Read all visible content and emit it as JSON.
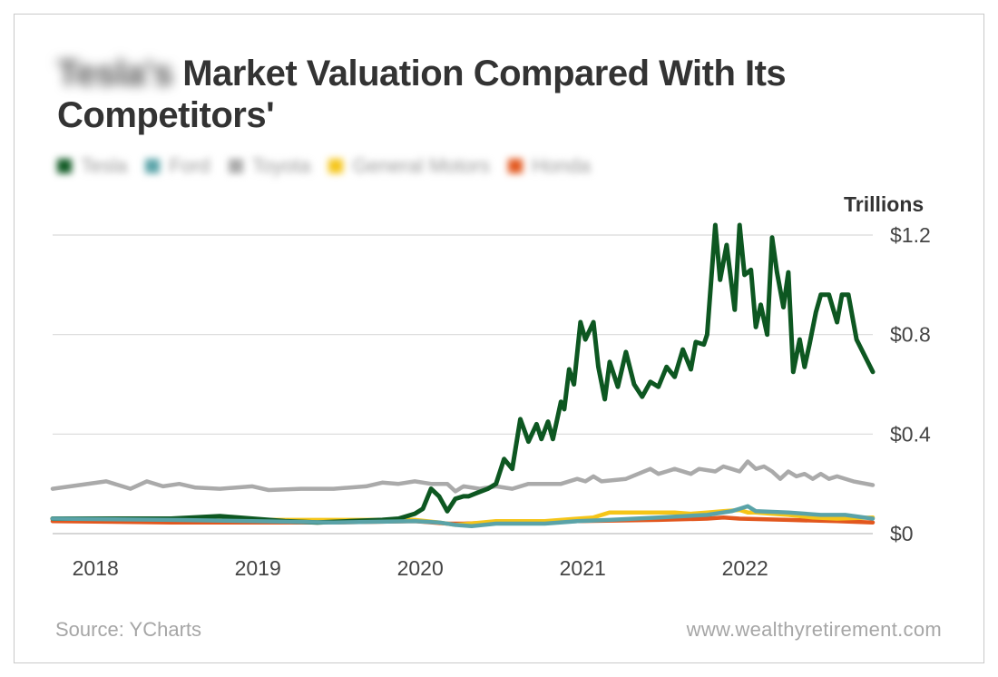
{
  "header": {
    "title_blurred": "Tesla's",
    "title_main": "Market Valuation Compared With Its Competitors'"
  },
  "footer": {
    "source": "Source: YCharts",
    "site": "www.wealthyretirement.com"
  },
  "chart_data": {
    "type": "line",
    "title": "Tesla's Market Valuation Compared With Its Competitors'",
    "ylabel": "Trillions",
    "xlabel": "",
    "ylim": [
      0,
      1.2
    ],
    "xlim": [
      2017.77,
      2022.82
    ],
    "y_ticks": [
      {
        "value": 0,
        "label": "$0"
      },
      {
        "value": 0.4,
        "label": "$0.4"
      },
      {
        "value": 0.8,
        "label": "$0.8"
      },
      {
        "value": 1.2,
        "label": "$1.2"
      }
    ],
    "x_ticks": [
      {
        "value": 2018,
        "label": "2018"
      },
      {
        "value": 2019,
        "label": "2019"
      },
      {
        "value": 2020,
        "label": "2020"
      },
      {
        "value": 2021,
        "label": "2021"
      },
      {
        "value": 2022,
        "label": "2022"
      }
    ],
    "grid": true,
    "legend_position": "top-left",
    "series": [
      {
        "name": "Toyota",
        "color": "#aaaaaa",
        "x": [
          2017.77,
          2018.1,
          2018.25,
          2018.35,
          2018.45,
          2018.55,
          2018.65,
          2018.8,
          2019.0,
          2019.1,
          2019.3,
          2019.5,
          2019.7,
          2019.8,
          2019.9,
          2020.0,
          2020.1,
          2020.2,
          2020.25,
          2020.3,
          2020.4,
          2020.5,
          2020.6,
          2020.7,
          2020.9,
          2021.0,
          2021.05,
          2021.1,
          2021.15,
          2021.3,
          2021.45,
          2021.5,
          2021.55,
          2021.6,
          2021.7,
          2021.75,
          2021.85,
          2021.9,
          2021.95,
          2022.0,
          2022.05,
          2022.1,
          2022.15,
          2022.2,
          2022.25,
          2022.3,
          2022.35,
          2022.4,
          2022.45,
          2022.5,
          2022.55,
          2022.6,
          2022.7,
          2022.82
        ],
        "values": [
          0.18,
          0.21,
          0.18,
          0.21,
          0.19,
          0.2,
          0.185,
          0.18,
          0.19,
          0.175,
          0.18,
          0.18,
          0.19,
          0.205,
          0.2,
          0.21,
          0.2,
          0.2,
          0.17,
          0.19,
          0.18,
          0.19,
          0.18,
          0.2,
          0.2,
          0.22,
          0.21,
          0.23,
          0.21,
          0.22,
          0.26,
          0.24,
          0.25,
          0.26,
          0.24,
          0.26,
          0.25,
          0.27,
          0.26,
          0.25,
          0.29,
          0.26,
          0.27,
          0.25,
          0.22,
          0.25,
          0.23,
          0.24,
          0.22,
          0.24,
          0.22,
          0.23,
          0.21,
          0.195
        ]
      },
      {
        "name": "Honda",
        "color": "#e2571e",
        "x": [
          2017.77,
          2018.5,
          2019.0,
          2019.5,
          2020.0,
          2020.2,
          2020.3,
          2020.5,
          2021.0,
          2021.5,
          2021.8,
          2021.9,
          2022.0,
          2022.3,
          2022.6,
          2022.82
        ],
        "values": [
          0.05,
          0.045,
          0.045,
          0.045,
          0.05,
          0.04,
          0.04,
          0.045,
          0.05,
          0.055,
          0.06,
          0.065,
          0.06,
          0.055,
          0.05,
          0.045
        ]
      },
      {
        "name": "General Motors",
        "color": "#f5c518",
        "x": [
          2017.77,
          2018.5,
          2019.0,
          2019.5,
          2020.0,
          2020.15,
          2020.25,
          2020.5,
          2020.8,
          2021.0,
          2021.1,
          2021.2,
          2021.5,
          2021.6,
          2021.7,
          2021.8,
          2021.9,
          2022.0,
          2022.05,
          2022.1,
          2022.2,
          2022.3,
          2022.45,
          2022.6,
          2022.82
        ],
        "values": [
          0.06,
          0.06,
          0.055,
          0.055,
          0.055,
          0.045,
          0.035,
          0.05,
          0.05,
          0.06,
          0.065,
          0.085,
          0.085,
          0.085,
          0.08,
          0.085,
          0.09,
          0.095,
          0.085,
          0.085,
          0.08,
          0.075,
          0.065,
          0.06,
          0.065
        ]
      },
      {
        "name": "Tesla",
        "color": "#0d5721",
        "x": [
          2017.77,
          2018.5,
          2018.8,
          2019.0,
          2019.2,
          2019.4,
          2019.6,
          2019.8,
          2019.9,
          2020.0,
          2020.05,
          2020.1,
          2020.15,
          2020.2,
          2020.25,
          2020.3,
          2020.33,
          2020.37,
          2020.45,
          2020.5,
          2020.55,
          2020.6,
          2020.65,
          2020.7,
          2020.75,
          2020.78,
          2020.82,
          2020.85,
          2020.9,
          2020.92,
          2020.95,
          2020.98,
          2021.02,
          2021.05,
          2021.1,
          2021.13,
          2021.17,
          2021.2,
          2021.25,
          2021.3,
          2021.35,
          2021.4,
          2021.45,
          2021.5,
          2021.55,
          2021.6,
          2021.65,
          2021.7,
          2021.73,
          2021.78,
          2021.8,
          2021.85,
          2021.88,
          2021.92,
          2021.97,
          2022.0,
          2022.03,
          2022.07,
          2022.1,
          2022.13,
          2022.17,
          2022.2,
          2022.23,
          2022.27,
          2022.3,
          2022.33,
          2022.37,
          2022.4,
          2022.43,
          2022.47,
          2022.5,
          2022.55,
          2022.6,
          2022.63,
          2022.67,
          2022.72,
          2022.82
        ],
        "values": [
          0.06,
          0.06,
          0.07,
          0.06,
          0.05,
          0.045,
          0.05,
          0.055,
          0.06,
          0.08,
          0.1,
          0.18,
          0.15,
          0.09,
          0.14,
          0.15,
          0.15,
          0.16,
          0.18,
          0.2,
          0.3,
          0.26,
          0.46,
          0.37,
          0.44,
          0.38,
          0.45,
          0.38,
          0.53,
          0.5,
          0.66,
          0.6,
          0.85,
          0.78,
          0.85,
          0.67,
          0.54,
          0.69,
          0.59,
          0.73,
          0.6,
          0.55,
          0.61,
          0.59,
          0.67,
          0.63,
          0.74,
          0.66,
          0.77,
          0.76,
          0.8,
          1.24,
          1.02,
          1.16,
          0.9,
          1.24,
          1.04,
          1.06,
          0.83,
          0.92,
          0.8,
          1.19,
          1.05,
          0.91,
          1.05,
          0.65,
          0.78,
          0.67,
          0.76,
          0.89,
          0.96,
          0.96,
          0.85,
          0.96,
          0.96,
          0.78,
          0.65
        ]
      },
      {
        "name": "Ford",
        "color": "#5aa3a8",
        "x": [
          2017.77,
          2018.5,
          2019.0,
          2019.5,
          2020.0,
          2020.15,
          2020.25,
          2020.35,
          2020.5,
          2020.8,
          2021.0,
          2021.2,
          2021.5,
          2021.8,
          2021.95,
          2022.0,
          2022.05,
          2022.1,
          2022.3,
          2022.5,
          2022.65,
          2022.82
        ],
        "values": [
          0.06,
          0.055,
          0.05,
          0.045,
          0.05,
          0.045,
          0.035,
          0.03,
          0.04,
          0.04,
          0.05,
          0.055,
          0.065,
          0.075,
          0.09,
          0.1,
          0.11,
          0.09,
          0.085,
          0.075,
          0.075,
          0.06
        ]
      }
    ]
  },
  "legend": [
    {
      "label": "Tesla",
      "color": "#0d5721"
    },
    {
      "label": "Ford",
      "color": "#5aa3a8"
    },
    {
      "label": "Toyota",
      "color": "#aaaaaa"
    },
    {
      "label": "General Motors",
      "color": "#f5c518"
    },
    {
      "label": "Honda",
      "color": "#e2571e"
    }
  ]
}
